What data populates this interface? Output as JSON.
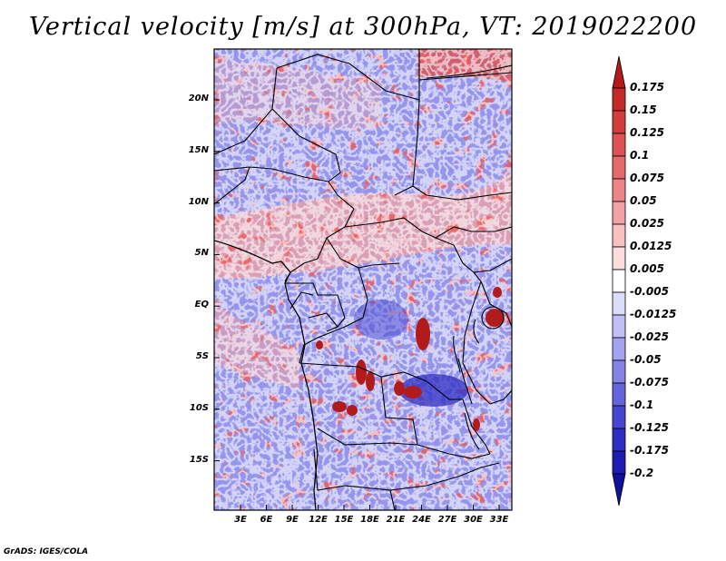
{
  "title": "Vertical velocity [m/s] at 300hPa, VT: 2019022200",
  "credit": "GrADS: IGES/COLA",
  "map": {
    "lat_labels": [
      "20N",
      "15N",
      "10N",
      "5N",
      "EQ",
      "5S",
      "10S",
      "15S"
    ],
    "lon_labels": [
      "3E",
      "6E",
      "9E",
      "12E",
      "15E",
      "18E",
      "21E",
      "24E",
      "27E",
      "30E",
      "33E"
    ],
    "field": "vertical velocity",
    "level": "300hPa"
  },
  "colorbar": {
    "labels": [
      "0.175",
      "0.15",
      "0.125",
      "0.1",
      "0.075",
      "0.05",
      "0.025",
      "0.0125",
      "0.005",
      "-0.005",
      "-0.0125",
      "-0.025",
      "-0.05",
      "-0.075",
      "-0.1",
      "-0.125",
      "-0.175",
      "-0.2"
    ],
    "colors": [
      "#b21b1b",
      "#c42a2a",
      "#d23c3c",
      "#dd5252",
      "#e56a6a",
      "#ec8585",
      "#f2a2a2",
      "#f7c1c1",
      "#fbdddd",
      "#ffffff",
      "#dcdcfb",
      "#c0c0f6",
      "#a3a3ef",
      "#8484e6",
      "#6464dc",
      "#4646d0",
      "#2e2ec2",
      "#1c1cb0",
      "#10109a"
    ]
  }
}
